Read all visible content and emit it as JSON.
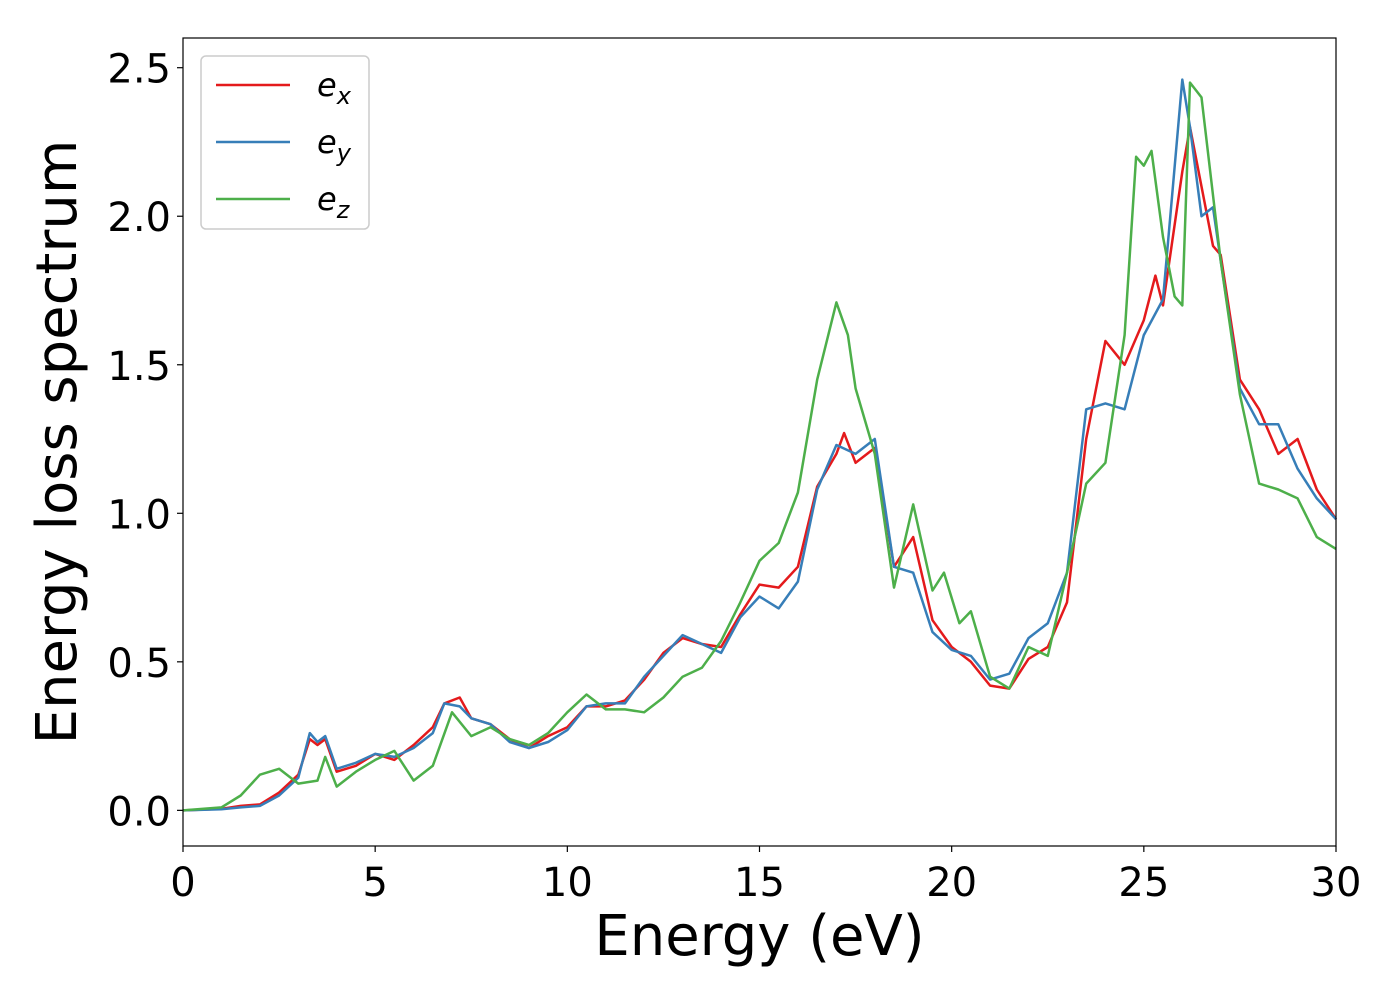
{
  "chart_data": {
    "type": "line",
    "xlabel": "Energy (eV)",
    "ylabel": "Energy loss spectrum",
    "xlim": [
      0,
      30
    ],
    "ylim": [
      -0.12,
      2.6
    ],
    "xticks": [
      0,
      5,
      10,
      15,
      20,
      25,
      30
    ],
    "yticks": [
      0.0,
      0.5,
      1.0,
      1.5,
      2.0,
      2.5
    ],
    "xtick_labels": [
      "0",
      "5",
      "10",
      "15",
      "20",
      "25",
      "30"
    ],
    "ytick_labels": [
      "0.0",
      "0.5",
      "1.0",
      "1.5",
      "2.0",
      "2.5"
    ],
    "grid": false,
    "legend_position": "top-left",
    "series": [
      {
        "name": "e",
        "subscript": "x",
        "color": "#e41a1c",
        "x": [
          0,
          1,
          1.5,
          2,
          2.5,
          3,
          3.3,
          3.5,
          3.7,
          4,
          4.5,
          5,
          5.5,
          6,
          6.5,
          6.8,
          7.2,
          7.5,
          8,
          8.5,
          9,
          9.5,
          10,
          10.5,
          11,
          11.5,
          12,
          12.5,
          13,
          13.5,
          14,
          14.5,
          15,
          15.5,
          16,
          16.5,
          17,
          17.2,
          17.5,
          17.8,
          18,
          18.5,
          19,
          19.5,
          20,
          20.5,
          21,
          21.5,
          22,
          22.5,
          23,
          23.5,
          24,
          24.5,
          25,
          25.3,
          25.5,
          26,
          26.2,
          26.5,
          26.8,
          27,
          27.5,
          28,
          28.5,
          29,
          29.5,
          30
        ],
        "y": [
          0.0,
          0.005,
          0.015,
          0.02,
          0.06,
          0.12,
          0.24,
          0.22,
          0.24,
          0.13,
          0.15,
          0.19,
          0.17,
          0.22,
          0.28,
          0.36,
          0.38,
          0.31,
          0.29,
          0.24,
          0.21,
          0.25,
          0.28,
          0.35,
          0.35,
          0.37,
          0.44,
          0.53,
          0.58,
          0.56,
          0.55,
          0.66,
          0.76,
          0.75,
          0.82,
          1.09,
          1.2,
          1.27,
          1.17,
          1.2,
          1.22,
          0.82,
          0.92,
          0.64,
          0.55,
          0.5,
          0.42,
          0.41,
          0.51,
          0.55,
          0.7,
          1.25,
          1.58,
          1.5,
          1.65,
          1.8,
          1.7,
          2.15,
          2.3,
          2.1,
          1.9,
          1.87,
          1.45,
          1.35,
          1.2,
          1.25,
          1.08,
          0.98
        ]
      },
      {
        "name": "e",
        "subscript": "y",
        "color": "#377eb8",
        "x": [
          0,
          1,
          1.5,
          2,
          2.5,
          3,
          3.3,
          3.5,
          3.7,
          4,
          4.5,
          5,
          5.5,
          6,
          6.5,
          6.8,
          7.2,
          7.5,
          8,
          8.5,
          9,
          9.5,
          10,
          10.5,
          11,
          11.5,
          12,
          12.5,
          13,
          13.5,
          14,
          14.5,
          15,
          15.5,
          16,
          16.5,
          17,
          17.5,
          18,
          18.5,
          19,
          19.5,
          20,
          20.5,
          21,
          21.5,
          22,
          22.5,
          23,
          23.5,
          24,
          24.5,
          25,
          25.5,
          26,
          26.2,
          26.5,
          26.8,
          27,
          27.5,
          28,
          28.5,
          29,
          29.5,
          30
        ],
        "y": [
          0.0,
          0.004,
          0.01,
          0.015,
          0.05,
          0.11,
          0.26,
          0.23,
          0.25,
          0.14,
          0.16,
          0.19,
          0.18,
          0.21,
          0.26,
          0.36,
          0.35,
          0.31,
          0.29,
          0.23,
          0.21,
          0.23,
          0.27,
          0.35,
          0.36,
          0.36,
          0.45,
          0.52,
          0.59,
          0.56,
          0.53,
          0.65,
          0.72,
          0.68,
          0.77,
          1.08,
          1.23,
          1.2,
          1.25,
          0.82,
          0.8,
          0.6,
          0.54,
          0.52,
          0.44,
          0.46,
          0.58,
          0.63,
          0.8,
          1.35,
          1.37,
          1.35,
          1.6,
          1.72,
          2.46,
          2.3,
          2.0,
          2.03,
          1.85,
          1.42,
          1.3,
          1.3,
          1.15,
          1.05,
          0.98
        ]
      },
      {
        "name": "e",
        "subscript": "z",
        "color": "#4daf4a",
        "x": [
          0,
          1,
          1.5,
          2,
          2.5,
          3,
          3.5,
          3.7,
          4,
          4.5,
          5,
          5.5,
          6,
          6.5,
          7,
          7.5,
          8,
          8.5,
          9,
          9.5,
          10,
          10.5,
          11,
          11.5,
          12,
          12.5,
          13,
          13.5,
          14,
          14.5,
          15,
          15.5,
          16,
          16.5,
          17,
          17.3,
          17.5,
          18,
          18.5,
          19,
          19.5,
          19.8,
          20.2,
          20.5,
          21,
          21.5,
          22,
          22.5,
          23,
          23.5,
          24,
          24.5,
          24.8,
          25,
          25.2,
          25.5,
          25.8,
          26,
          26.2,
          26.5,
          27,
          27.5,
          28,
          28.5,
          29,
          29.5,
          30
        ],
        "y": [
          0.0,
          0.01,
          0.05,
          0.12,
          0.14,
          0.09,
          0.1,
          0.18,
          0.08,
          0.13,
          0.17,
          0.2,
          0.1,
          0.15,
          0.33,
          0.25,
          0.28,
          0.24,
          0.22,
          0.26,
          0.33,
          0.39,
          0.34,
          0.34,
          0.33,
          0.38,
          0.45,
          0.48,
          0.57,
          0.7,
          0.84,
          0.9,
          1.07,
          1.45,
          1.71,
          1.6,
          1.42,
          1.2,
          0.75,
          1.03,
          0.74,
          0.8,
          0.63,
          0.67,
          0.45,
          0.41,
          0.55,
          0.52,
          0.8,
          1.1,
          1.17,
          1.6,
          2.2,
          2.17,
          2.22,
          1.93,
          1.73,
          1.7,
          2.45,
          2.4,
          1.85,
          1.4,
          1.1,
          1.08,
          1.05,
          0.92,
          0.88
        ]
      }
    ]
  }
}
